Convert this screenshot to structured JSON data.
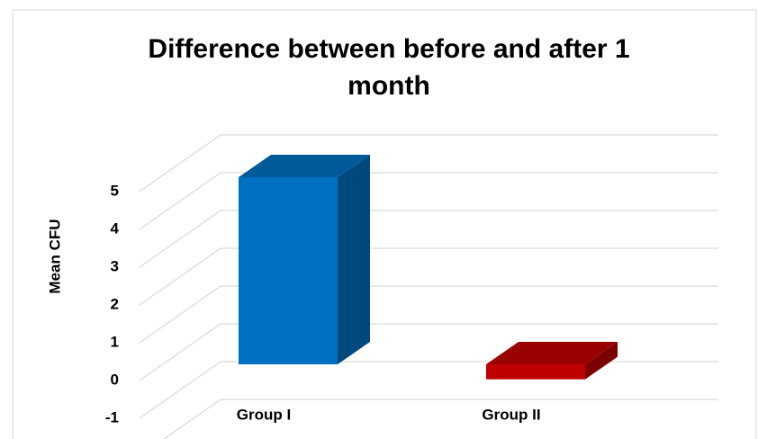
{
  "chart_data": {
    "type": "bar3d",
    "title_lines": [
      "Difference between before and after 1",
      "month"
    ],
    "ylabel": "Mean CFU",
    "categories": [
      "Group I",
      "Group II"
    ],
    "values": [
      5,
      -0.4
    ],
    "colors": [
      "#0070c0",
      "#c00000"
    ],
    "ylim": [
      -1,
      6
    ],
    "yticks": [
      -1,
      0,
      1,
      2,
      3,
      4,
      5
    ],
    "grid": true
  }
}
